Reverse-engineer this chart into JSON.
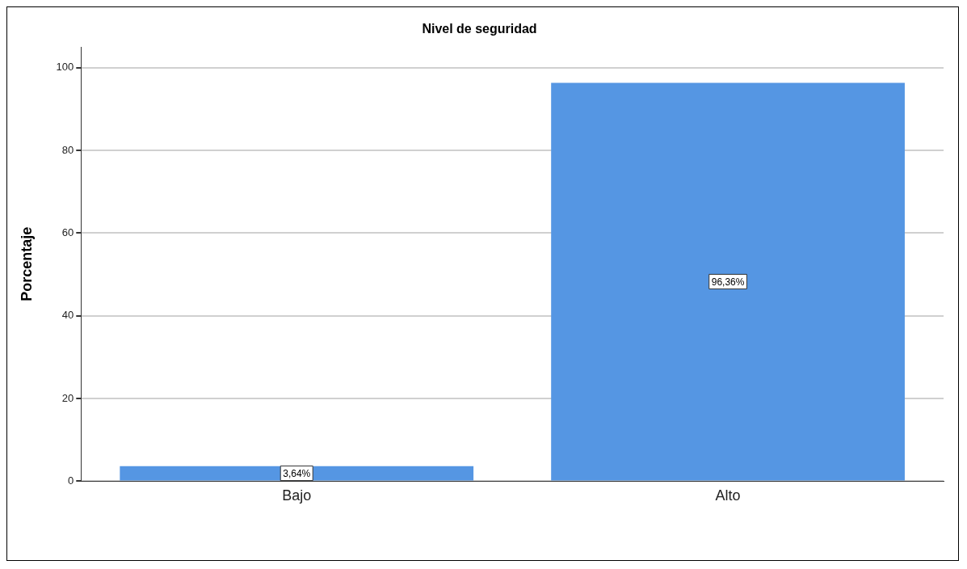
{
  "chart_data": {
    "type": "bar",
    "title": "Nivel de seguridad",
    "ylabel": "Porcentaje",
    "categories": [
      "Bajo",
      "Alto"
    ],
    "values": [
      3.64,
      96.36
    ],
    "value_labels": [
      "3,64%",
      "96,36%"
    ],
    "color": "#5596e3",
    "ylim": [
      0,
      105
    ],
    "yticks": [
      0,
      20,
      40,
      60,
      80,
      100
    ],
    "grid": "y",
    "legend": false
  }
}
